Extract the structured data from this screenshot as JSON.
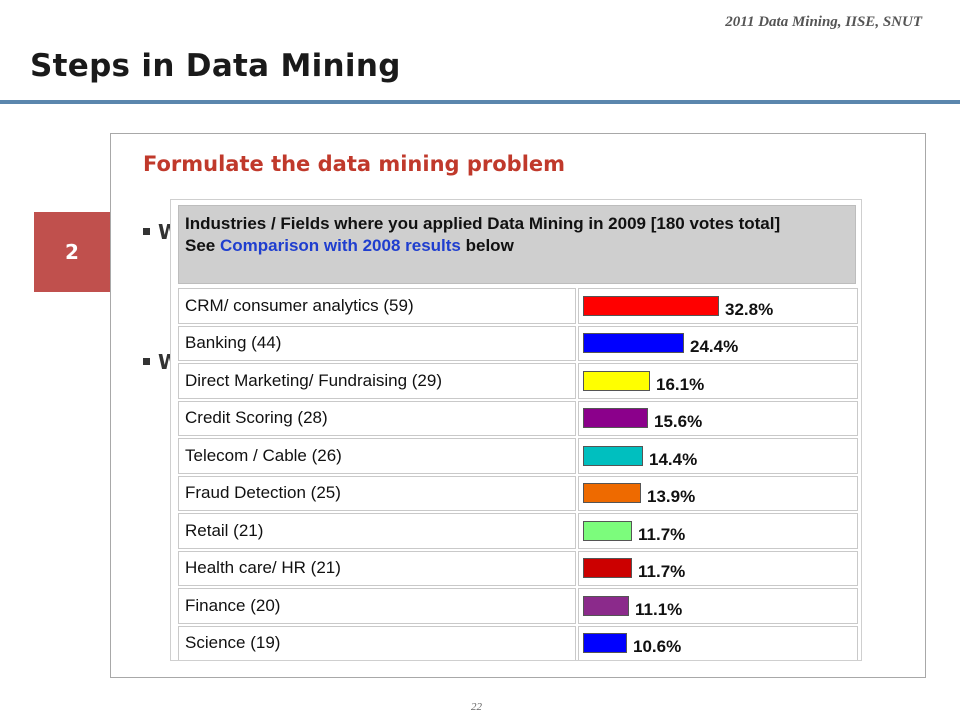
{
  "header": {
    "course_label": "2011 Data Mining, IISE, SNUT",
    "title": "Steps in Data Mining"
  },
  "step": {
    "number": "2"
  },
  "content": {
    "heading": "Formulate the data mining problem",
    "bullets": [
      "W",
      "W"
    ]
  },
  "survey": {
    "title": "Industries / Fields where you applied Data Mining in 2009 [180 votes total]",
    "see_prefix": "See",
    "comparison_link": "Comparison with 2008 results",
    "see_suffix": "below",
    "rows": [
      {
        "label": "CRM/ consumer analytics (59)",
        "percent": 32.8,
        "percent_text": "32.8%",
        "color": "#ff0000"
      },
      {
        "label": "Banking (44)",
        "percent": 24.4,
        "percent_text": "24.4%",
        "color": "#0000ff"
      },
      {
        "label": "Direct Marketing/ Fundraising (29)",
        "percent": 16.1,
        "percent_text": "16.1%",
        "color": "#ffff00"
      },
      {
        "label": "Credit Scoring (28)",
        "percent": 15.6,
        "percent_text": "15.6%",
        "color": "#8b008b"
      },
      {
        "label": "Telecom / Cable (26)",
        "percent": 14.4,
        "percent_text": "14.4%",
        "color": "#00bfbf"
      },
      {
        "label": "Fraud Detection (25)",
        "percent": 13.9,
        "percent_text": "13.9%",
        "color": "#ee6a00"
      },
      {
        "label": "Retail (21)",
        "percent": 11.7,
        "percent_text": "11.7%",
        "color": "#7cfc7c"
      },
      {
        "label": "Health care/ HR (21)",
        "percent": 11.7,
        "percent_text": "11.7%",
        "color": "#cc0000"
      },
      {
        "label": "Finance (20)",
        "percent": 11.1,
        "percent_text": "11.1%",
        "color": "#8b2a8b"
      },
      {
        "label": "Science (19)",
        "percent": 10.6,
        "percent_text": "10.6%",
        "color": "#0000ff"
      }
    ]
  },
  "footer": {
    "page_number": "22"
  }
}
